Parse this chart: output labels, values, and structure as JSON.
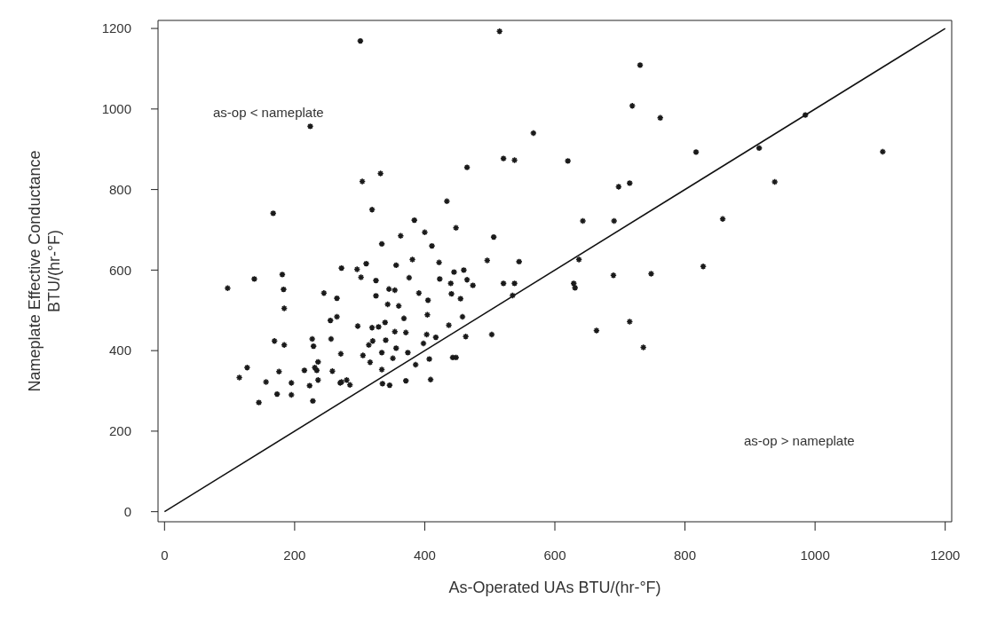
{
  "chart_data": {
    "type": "scatter",
    "xlabel": "As-Operated UAs   BTU/(hr-°F)",
    "ylabel": "Nameplate Effective Conductance\nBTU/(hr-°F)",
    "xlim": [
      -10,
      1210
    ],
    "ylim": [
      -25,
      1220
    ],
    "xticks": [
      0,
      200,
      400,
      600,
      800,
      1000,
      1200
    ],
    "yticks": [
      0,
      200,
      400,
      600,
      800,
      1000,
      1200
    ],
    "grid": false,
    "annotations": [
      "as-op < nameplate",
      "as-op > nameplate"
    ],
    "series": [
      {
        "marker": "cross",
        "color": "#1a1a1a",
        "x": [
          224,
          167,
          272,
          138,
          181,
          97,
          183,
          245,
          265,
          184,
          255,
          265,
          169,
          184,
          227,
          229,
          256,
          271,
          127,
          115,
          176,
          215,
          231,
          236,
          234,
          258,
          156,
          195,
          223,
          236,
          270,
          280,
          145,
          173,
          195,
          228,
          301,
          515,
          567,
          521,
          538,
          620,
          465,
          304,
          332,
          434,
          319,
          643,
          384,
          448,
          400,
          363,
          506,
          334,
          411,
          381,
          422,
          496,
          545,
          637,
          310,
          296,
          302,
          356,
          325,
          376,
          423,
          445,
          460,
          465,
          440,
          474,
          521,
          538,
          629,
          631,
          345,
          354,
          391,
          325,
          441,
          535,
          405,
          455,
          343,
          360,
          404,
          368,
          297,
          319,
          329,
          339,
          354,
          371,
          403,
          417,
          437,
          458,
          463,
          503,
          664,
          314,
          320,
          340,
          305,
          316,
          334,
          351,
          356,
          374,
          398,
          407,
          443,
          448,
          386,
          334,
          335,
          346,
          371,
          409,
          285,
          272,
          731,
          719,
          762,
          985,
          817,
          914,
          1104,
          698,
          715,
          938,
          691,
          858,
          690,
          748,
          828,
          715,
          736
        ],
        "values": [
          957,
          741,
          605,
          578,
          589,
          555,
          552,
          543,
          530,
          505,
          475,
          484,
          424,
          414,
          429,
          411,
          429,
          392,
          358,
          333,
          348,
          351,
          358,
          372,
          351,
          349,
          322,
          320,
          313,
          327,
          320,
          327,
          271,
          292,
          290,
          275,
          1169,
          1193,
          940,
          877,
          873,
          871,
          855,
          820,
          840,
          771,
          750,
          722,
          724,
          705,
          694,
          685,
          682,
          665,
          660,
          626,
          619,
          624,
          621,
          626,
          616,
          602,
          582,
          612,
          574,
          581,
          578,
          595,
          600,
          576,
          567,
          562,
          567,
          567,
          567,
          556,
          553,
          550,
          543,
          536,
          541,
          537,
          525,
          529,
          515,
          511,
          489,
          480,
          461,
          457,
          459,
          470,
          447,
          445,
          440,
          433,
          463,
          484,
          435,
          440,
          450,
          414,
          424,
          426,
          388,
          371,
          395,
          381,
          406,
          395,
          418,
          379,
          383,
          383,
          365,
          353,
          318,
          314,
          325,
          328,
          315,
          322,
          1109,
          1008,
          978,
          985,
          893,
          903,
          894,
          807,
          816,
          819,
          722,
          727,
          587,
          591,
          609,
          472,
          408
        ]
      },
      {
        "type": "line",
        "color": "#111111",
        "line_style": "solid",
        "x": [
          0,
          1200
        ],
        "values": [
          0,
          1200
        ]
      }
    ]
  }
}
